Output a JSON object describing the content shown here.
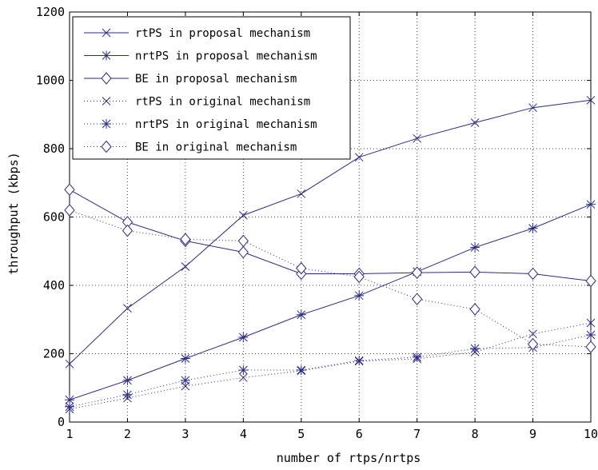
{
  "chart_data": {
    "type": "line",
    "title": "",
    "xlabel": "number of rtps/nrtps",
    "ylabel": "throughput (kbps)",
    "xlim": [
      1,
      10
    ],
    "ylim": [
      0,
      1200
    ],
    "xticks": [
      1,
      2,
      3,
      4,
      5,
      6,
      7,
      8,
      9,
      10
    ],
    "yticks": [
      0,
      200,
      400,
      600,
      800,
      1000,
      1200
    ],
    "grid": true,
    "legend_position": "top-left",
    "line_color": "#2b2b8a",
    "x": [
      1,
      2,
      3,
      4,
      5,
      6,
      7,
      8,
      9,
      10
    ],
    "series": [
      {
        "name": "rtPS in proposal mechanism",
        "style": "solid",
        "marker": "x",
        "values": [
          170,
          333,
          455,
          605,
          668,
          775,
          830,
          876,
          920,
          942
        ]
      },
      {
        "name": "nrtPS in proposal mechanism",
        "style": "solid",
        "marker": "star",
        "values": [
          65,
          122,
          186,
          248,
          314,
          370,
          440,
          511,
          567,
          637
        ]
      },
      {
        "name": "BE in proposal mechanism",
        "style": "solid",
        "marker": "diamond",
        "values": [
          680,
          585,
          530,
          497,
          434,
          434,
          437,
          439,
          434,
          413
        ]
      },
      {
        "name": "rtPS in original mechanism",
        "style": "dotted",
        "marker": "x",
        "values": [
          38,
          70,
          105,
          130,
          150,
          178,
          185,
          205,
          258,
          290
        ]
      },
      {
        "name": "nrtPS in original mechanism",
        "style": "dotted",
        "marker": "star",
        "values": [
          45,
          80,
          122,
          152,
          152,
          180,
          190,
          215,
          218,
          255
        ]
      },
      {
        "name": "BE in original mechanism",
        "style": "dotted",
        "marker": "diamond",
        "values": [
          620,
          560,
          535,
          530,
          450,
          425,
          360,
          330,
          228,
          220
        ]
      }
    ]
  }
}
